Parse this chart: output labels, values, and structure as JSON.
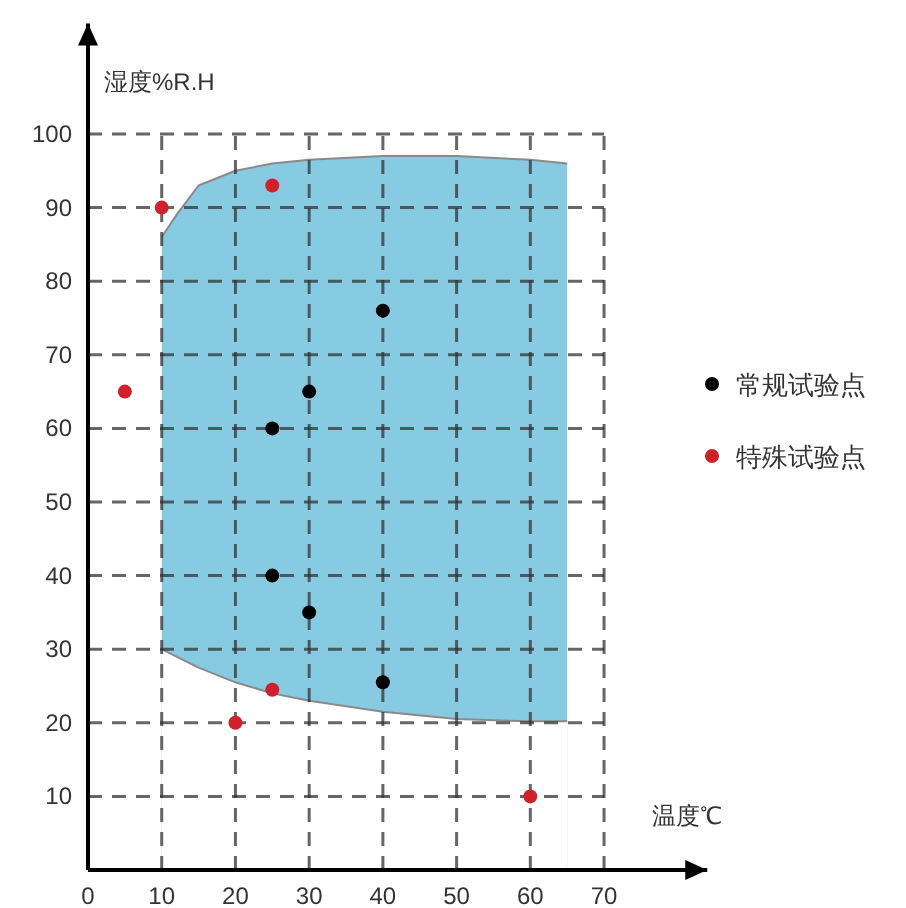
{
  "chart_data": {
    "type": "scatter",
    "xlabel": "温度℃",
    "ylabel": "湿度%R.H",
    "xlim": [
      0,
      84
    ],
    "ylim": [
      0,
      115
    ],
    "xticks": [
      0,
      10,
      20,
      30,
      40,
      50,
      60,
      70
    ],
    "yticks": [
      10,
      20,
      30,
      40,
      50,
      60,
      70,
      80,
      90,
      100
    ],
    "grid": true,
    "legend": "right",
    "series": [
      {
        "type": "area",
        "color": "#87cbe3",
        "x": [
          10,
          12,
          15,
          20,
          25,
          30,
          40,
          50,
          60,
          65
        ],
        "values": [
          86,
          89,
          93,
          95,
          96,
          96.5,
          97,
          97,
          96.5,
          96
        ]
      },
      {
        "type": "area",
        "color": "#ffffff",
        "x": [
          10,
          12,
          15,
          20,
          25,
          30,
          40,
          50,
          60,
          65
        ],
        "values": [
          30,
          29,
          27.5,
          25.5,
          24,
          23,
          21.5,
          20.5,
          20.2,
          20.2
        ]
      },
      {
        "name": "常规试验点",
        "color": "#000000",
        "marker": "circle",
        "x": [
          40,
          30,
          25,
          25,
          30,
          40
        ],
        "values": [
          76,
          65,
          60,
          40,
          35,
          25.5
        ]
      },
      {
        "name": "特殊试验点",
        "color": "#d0202a",
        "marker": "circle",
        "x": [
          10,
          25,
          5,
          20,
          25,
          60
        ],
        "values": [
          90,
          93,
          65,
          20,
          24.5,
          10
        ]
      }
    ]
  }
}
